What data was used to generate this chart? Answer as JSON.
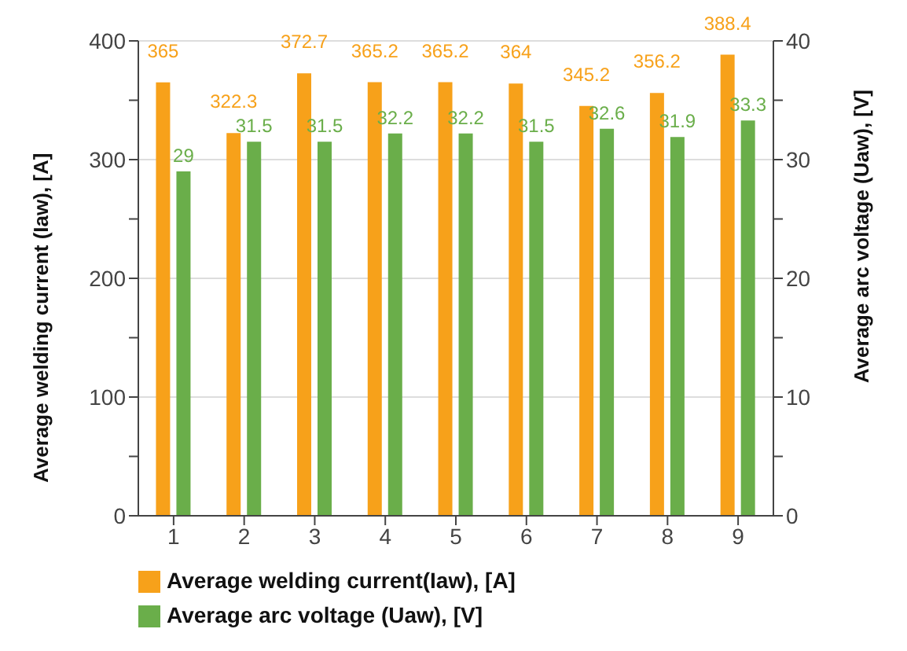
{
  "chart_data": {
    "type": "bar",
    "categories": [
      "1",
      "2",
      "3",
      "4",
      "5",
      "6",
      "7",
      "8",
      "9"
    ],
    "series": [
      {
        "name": "Average welding current(Iaw), [A]",
        "color": "#f7a11a",
        "values": [
          365,
          322.3,
          372.7,
          365.2,
          365.2,
          364,
          345.2,
          356.2,
          388.4
        ]
      },
      {
        "name": "Average arc voltage (Uaw), [V]",
        "color": "#6aae4a",
        "values": [
          29,
          31.5,
          31.5,
          32.2,
          32.2,
          31.5,
          32.6,
          31.9,
          33.3
        ],
        "axis": "y2"
      }
    ],
    "ylabel": "Average welding current (Iaw), [A]",
    "y2label": "Average arc voltage (Uaw), [V]",
    "ylim": [
      0,
      400
    ],
    "yticks": [
      0,
      {
        "value": 50,
        "label": null
      },
      100,
      {
        "value": 150,
        "label": null
      },
      200,
      {
        "value": 250,
        "label": null
      },
      300,
      {
        "value": 350,
        "label": null
      },
      400
    ],
    "y2lim": [
      0,
      40
    ],
    "y2ticks": [
      0,
      {
        "value": 5,
        "label": null
      },
      10,
      {
        "value": 15,
        "label": null
      },
      20,
      {
        "value": 25,
        "label": null
      },
      30,
      {
        "value": 35,
        "label": null
      },
      40
    ],
    "data_labels": true,
    "grid": "y",
    "legend": "bottom left"
  }
}
